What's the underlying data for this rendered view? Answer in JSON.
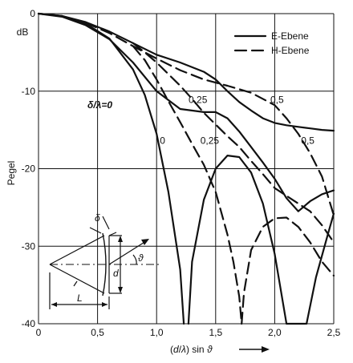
{
  "chart_data": {
    "type": "line",
    "ylabel": "Pegel",
    "yunit": "dB",
    "xlabel_parts": [
      "(",
      "d",
      "/",
      "λ",
      ") sin ",
      "ϑ"
    ],
    "xlim": [
      0,
      2.5
    ],
    "ylim": [
      -40,
      0
    ],
    "xticks": [
      "0",
      "0,5",
      "1,0",
      "1,5",
      "2,0",
      "2,5"
    ],
    "yticks": [
      "0",
      "-10",
      "-20",
      "-30",
      "-40"
    ],
    "grid": true,
    "legend": {
      "placement": "top-right",
      "entries": [
        {
          "label": "E-Ebene",
          "style": "solid"
        },
        {
          "label": "H-Ebene",
          "style": "dashed"
        }
      ]
    },
    "annotations": [
      {
        "text": "δ/λ=0",
        "x": 0.52,
        "y": -12.2
      },
      {
        "text": "0,25",
        "x": 1.35,
        "y": -11.5
      },
      {
        "text": "0,5",
        "x": 2.02,
        "y": -11.5
      },
      {
        "text": "0",
        "x": 1.05,
        "y": -16.8
      },
      {
        "text": "0,25",
        "x": 1.45,
        "y": -16.8
      },
      {
        "text": "0,5",
        "x": 2.28,
        "y": -16.8
      }
    ],
    "series": [
      {
        "style": "solid",
        "delta": "0",
        "x": [
          0,
          0.2,
          0.4,
          0.6,
          0.8,
          0.9,
          1.0,
          1.1,
          1.2,
          1.23
        ],
        "y": [
          0,
          -0.3,
          -1.3,
          -3.2,
          -7.2,
          -10.5,
          -15.5,
          -23,
          -33,
          -40
        ]
      },
      {
        "style": "solid",
        "delta": "0",
        "x": [
          1.27,
          1.3,
          1.4,
          1.5,
          1.6,
          1.7,
          1.8,
          1.9,
          2.0,
          2.1,
          2.2,
          2.26
        ],
        "y": [
          -40,
          -32,
          -24,
          -20,
          -18.3,
          -18.5,
          -20.5,
          -24.5,
          -31,
          -40,
          -40,
          -40
        ]
      },
      {
        "style": "solid",
        "delta": "0",
        "x": [
          2.27,
          2.35,
          2.45,
          2.5
        ],
        "y": [
          -40,
          -34,
          -28.5,
          -25.8
        ]
      },
      {
        "style": "solid",
        "delta": "0,25",
        "x": [
          0,
          0.2,
          0.4,
          0.6,
          0.8,
          1.0,
          1.2,
          1.4,
          1.5,
          1.6,
          1.7,
          1.8,
          1.9,
          2.0,
          2.1,
          2.2,
          2.3,
          2.4,
          2.5
        ],
        "y": [
          0,
          -0.4,
          -1.5,
          -3.3,
          -6.3,
          -10,
          -12.3,
          -12.7,
          -12.7,
          -13.5,
          -15.2,
          -17.2,
          -19.2,
          -21.3,
          -23.8,
          -25.5,
          -24.2,
          -23.3,
          -22.8
        ]
      },
      {
        "style": "solid",
        "delta": "0,5",
        "x": [
          0,
          0.2,
          0.4,
          0.6,
          0.8,
          1.0,
          1.2,
          1.4,
          1.5,
          1.6,
          1.7,
          1.8,
          1.9,
          2.0,
          2.1,
          2.2,
          2.3,
          2.4,
          2.5
        ],
        "y": [
          0,
          -0.3,
          -1.1,
          -2.3,
          -3.8,
          -5.3,
          -6.3,
          -7.5,
          -8.5,
          -10,
          -11.4,
          -12.5,
          -13.5,
          -14.1,
          -14.4,
          -14.6,
          -14.8,
          -15,
          -15.1
        ]
      },
      {
        "style": "dashed",
        "delta": "0",
        "x": [
          0.8,
          0.9,
          1.0,
          1.1,
          1.2,
          1.3,
          1.4,
          1.5,
          1.6,
          1.65,
          1.7,
          1.72
        ],
        "y": [
          -4.2,
          -6,
          -8.5,
          -11.3,
          -14,
          -16.8,
          -19.5,
          -23,
          -28.5,
          -32,
          -36.5,
          -40
        ]
      },
      {
        "style": "dashed",
        "delta": "0",
        "x": [
          1.72,
          1.74,
          1.8,
          1.9,
          2.0,
          2.1,
          2.2,
          2.3,
          2.4,
          2.5
        ],
        "y": [
          -40,
          -36,
          -30.5,
          -27.5,
          -26.4,
          -26.3,
          -27.5,
          -29.5,
          -32,
          -33.8
        ]
      },
      {
        "style": "dashed",
        "delta": "0,25",
        "x": [
          0.8,
          0.9,
          1.0,
          1.1,
          1.2,
          1.3,
          1.4,
          1.5,
          1.6,
          1.7,
          1.8,
          1.9,
          2.0,
          2.1,
          2.2,
          2.3,
          2.4,
          2.5
        ],
        "y": [
          -3.8,
          -5,
          -6.3,
          -7.8,
          -9.3,
          -11,
          -12.8,
          -14.3,
          -15.8,
          -17.2,
          -19,
          -20.7,
          -22.5,
          -23.5,
          -24.5,
          -25.5,
          -27.3,
          -29.5
        ]
      },
      {
        "style": "dashed",
        "delta": "0,5",
        "x": [
          0.4,
          0.6,
          0.8,
          1.0,
          1.2,
          1.4,
          1.6,
          1.8,
          2.0,
          2.1,
          2.2,
          2.3,
          2.4,
          2.5
        ],
        "y": [
          -1.2,
          -2.5,
          -4.2,
          -5.8,
          -7.3,
          -8.5,
          -9.3,
          -10.2,
          -11.8,
          -13.5,
          -15.5,
          -18,
          -21,
          -26
        ]
      }
    ]
  },
  "inset": {
    "labels": {
      "delta": "δ",
      "theta": "ϑ",
      "d": "d",
      "L": "L"
    }
  }
}
